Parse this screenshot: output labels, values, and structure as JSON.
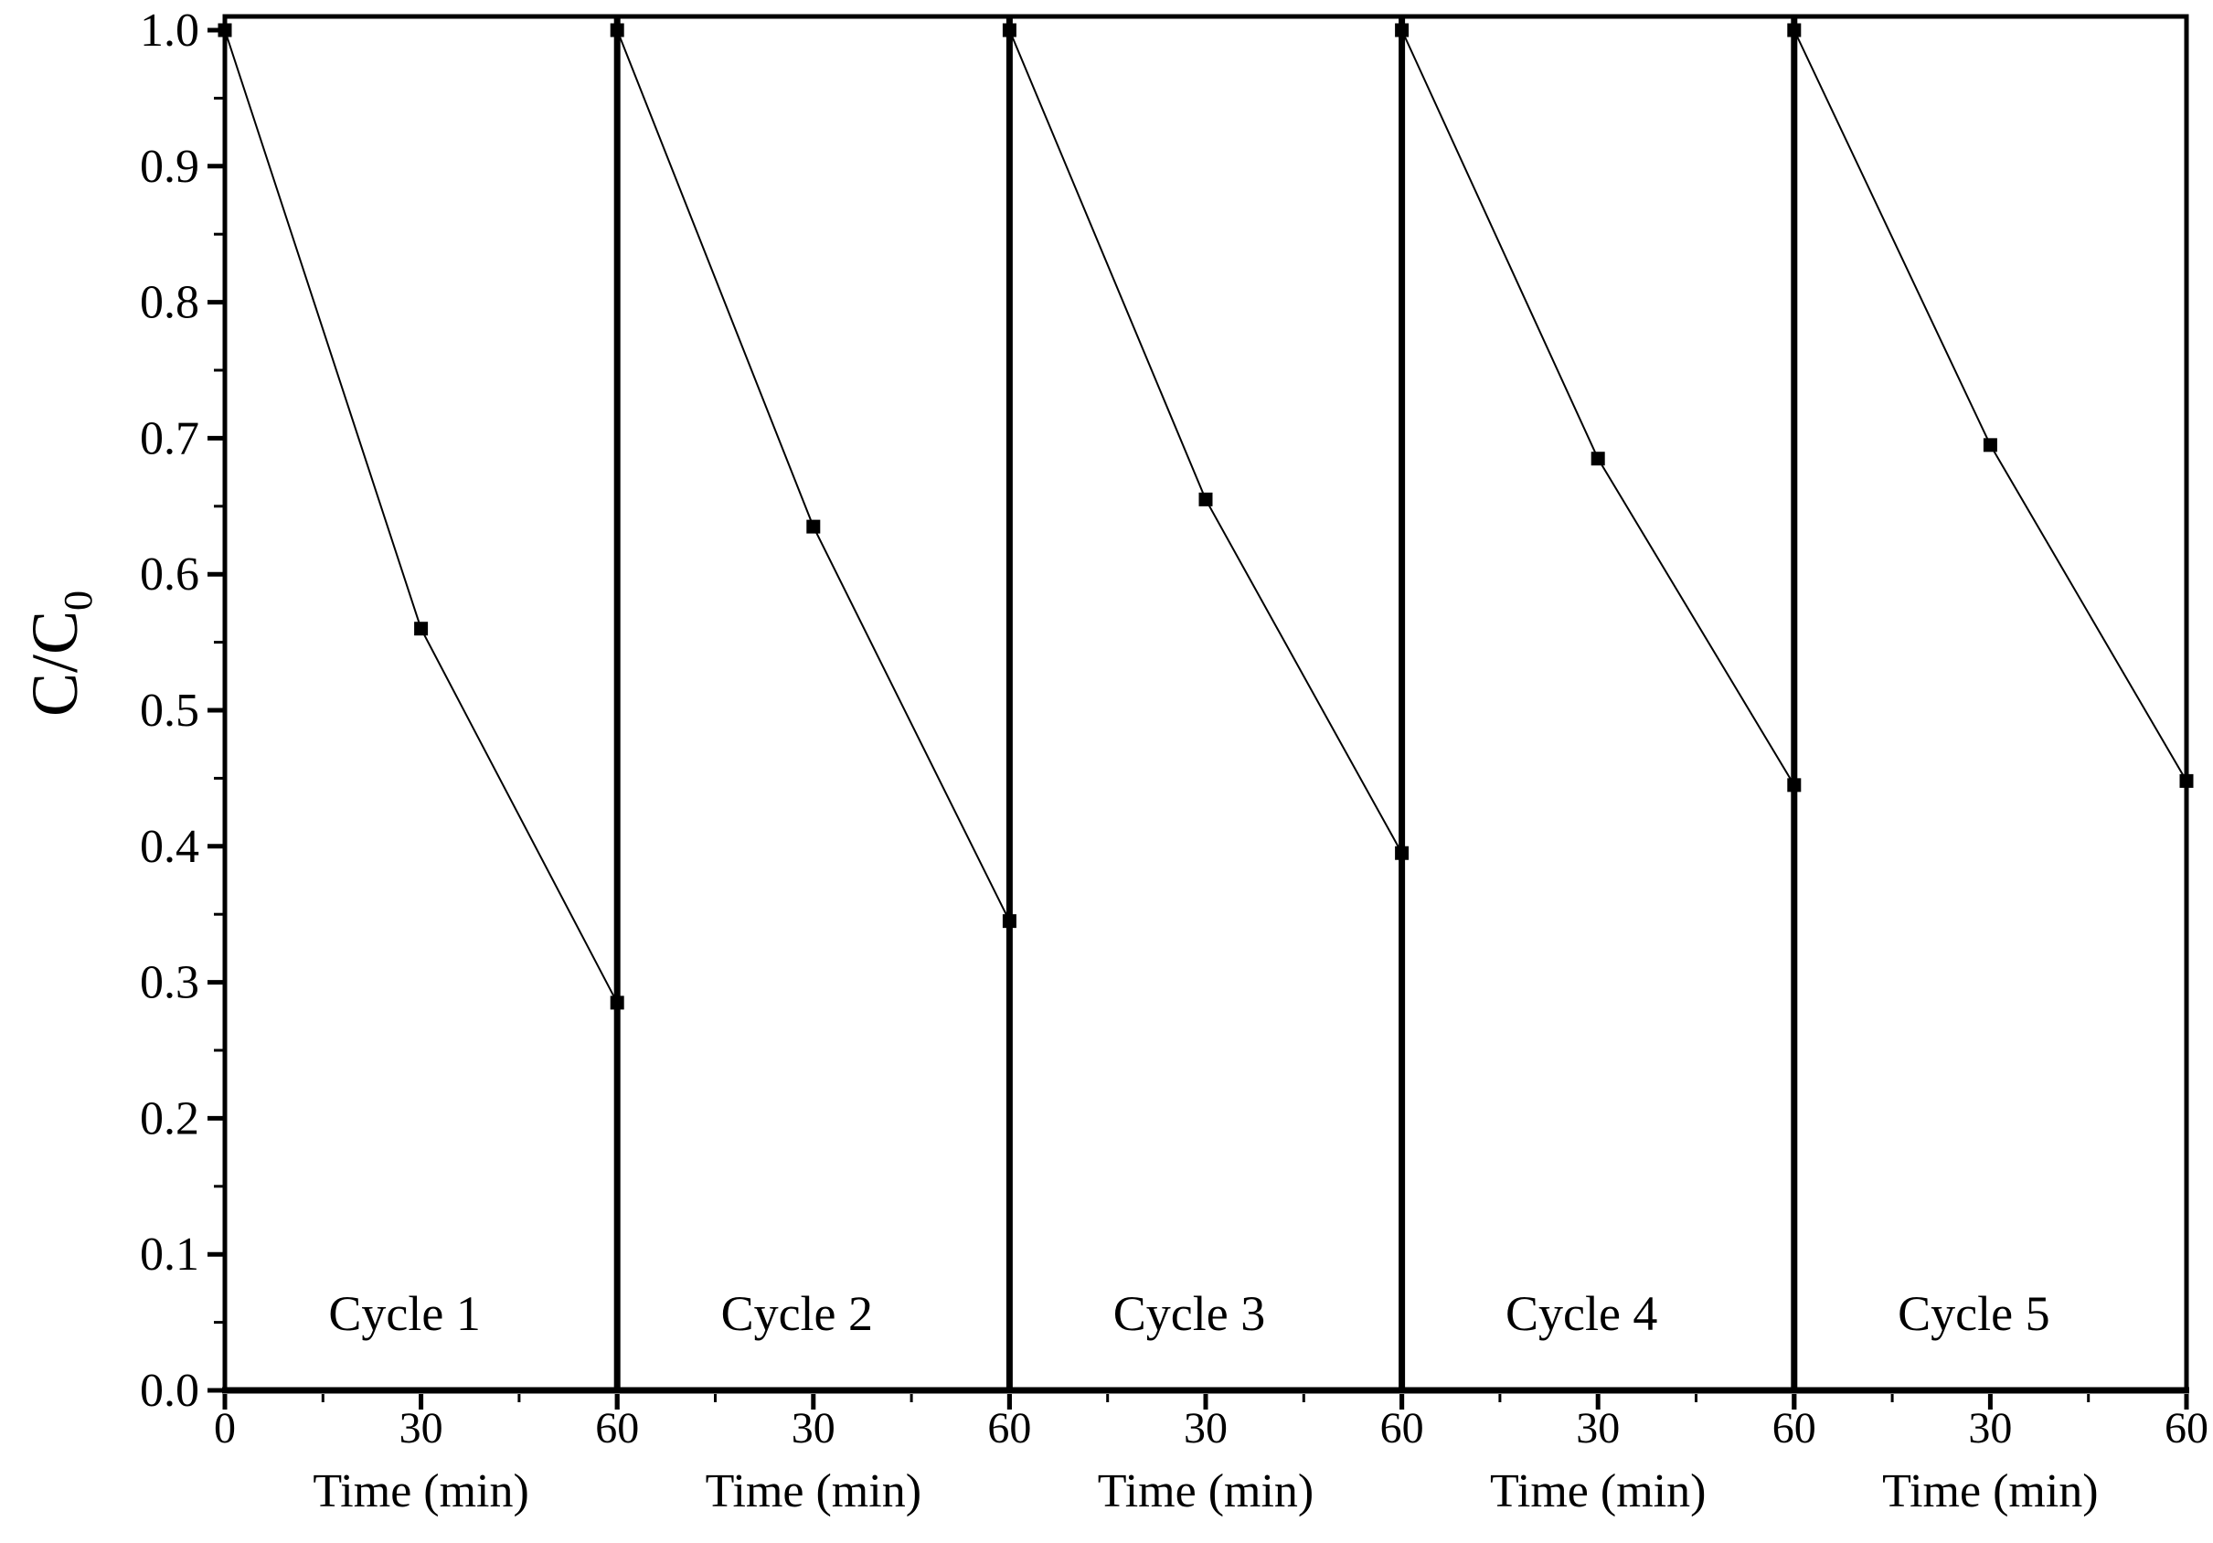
{
  "page": {
    "background_color": "#ffffff",
    "foreground_color": "#000000"
  },
  "chart_data": {
    "type": "line",
    "title": "",
    "xlabel": "Time (min)",
    "xlabel_repeated_per_cycle": true,
    "ylabel": "C/C",
    "ylabel_sub": "0",
    "ylim": [
      0.0,
      1.0
    ],
    "y_major_ticks": [
      0.0,
      0.1,
      0.2,
      0.3,
      0.4,
      0.5,
      0.6,
      0.7,
      0.8,
      0.9,
      1.0
    ],
    "y_minor_ticks": [
      0.05,
      0.15,
      0.25,
      0.35,
      0.45,
      0.55,
      0.65,
      0.75,
      0.85,
      0.95
    ],
    "x_ticks_per_cycle": [
      0,
      30,
      60
    ],
    "x_minor_ticks_per_cycle": [
      15,
      45
    ],
    "x_first_cycle_zero_label": "0",
    "minutes_per_cycle": 60,
    "grid": false,
    "legend": "none",
    "marker": "filled-square",
    "line_color": "#000000",
    "marker_color": "#000000",
    "divider_between_cycles": true,
    "cycles": [
      {
        "label": "Cycle 1",
        "x": [
          0,
          30,
          60
        ],
        "y": [
          1.0,
          0.56,
          0.285
        ]
      },
      {
        "label": "Cycle 2",
        "x": [
          0,
          30,
          60
        ],
        "y": [
          1.0,
          0.635,
          0.345
        ]
      },
      {
        "label": "Cycle 3",
        "x": [
          0,
          30,
          60
        ],
        "y": [
          1.0,
          0.655,
          0.395
        ]
      },
      {
        "label": "Cycle 4",
        "x": [
          0,
          30,
          60
        ],
        "y": [
          1.0,
          0.685,
          0.445
        ]
      },
      {
        "label": "Cycle 5",
        "x": [
          0,
          30,
          60
        ],
        "y": [
          1.0,
          0.695,
          0.448
        ]
      }
    ]
  }
}
